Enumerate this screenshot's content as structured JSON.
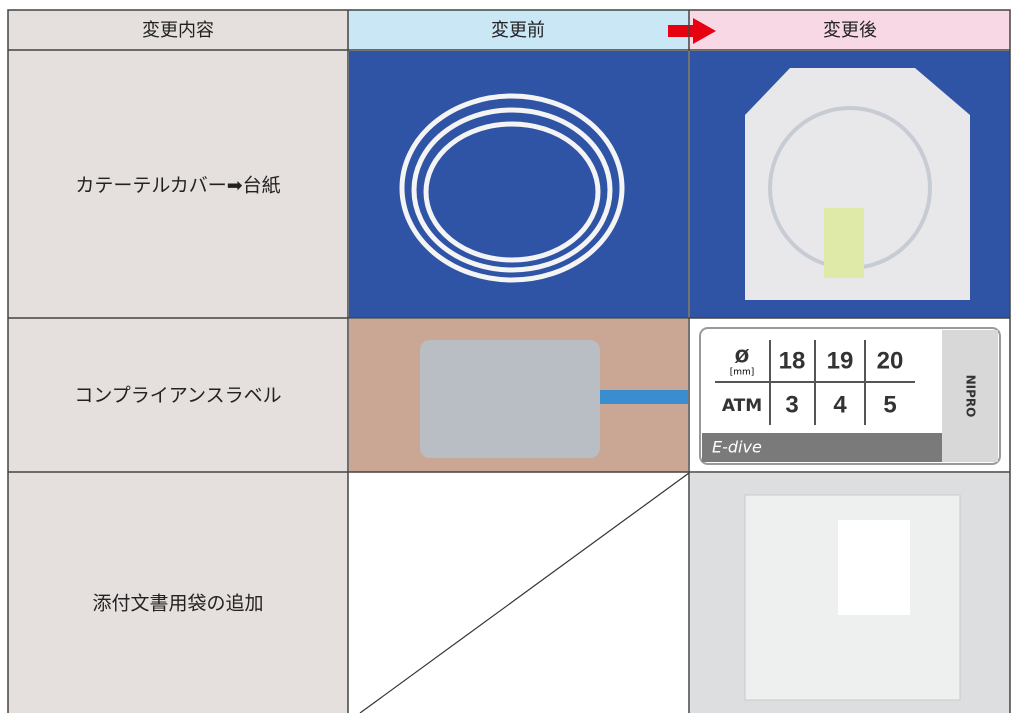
{
  "table": {
    "header": [
      "変更内容",
      "変更前",
      "変更後"
    ],
    "rows": [
      [
        "カテーテルカバー➡台紙"
      ],
      [
        "コンプライアンスラベル"
      ],
      [
        "添付文書用袋の追加"
      ]
    ]
  },
  "label": {
    "row1": [
      "ø",
      "[mm]",
      "18",
      "19",
      "20"
    ],
    "row2": [
      "ATM",
      "3",
      "4",
      "5"
    ],
    "brand": "E-dive",
    "maker": "NIPRO"
  }
}
